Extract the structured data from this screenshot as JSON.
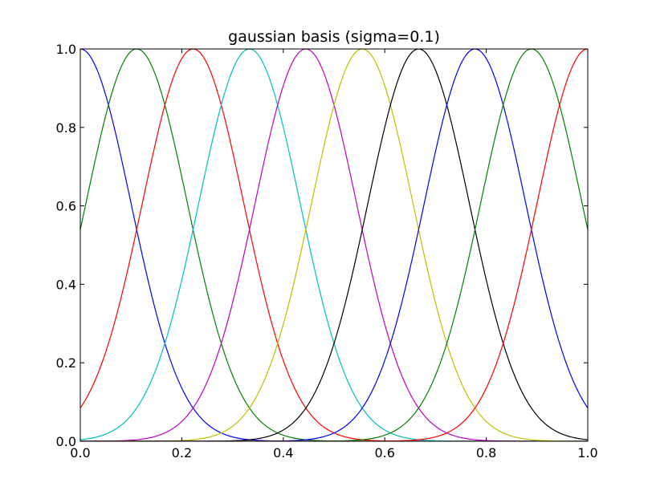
{
  "chart_data": {
    "type": "line",
    "title": "gaussian basis (sigma=0.1)",
    "xlabel": "",
    "ylabel": "",
    "xlim": [
      0.0,
      1.0
    ],
    "ylim": [
      0.0,
      1.0
    ],
    "grid": false,
    "legend": "none",
    "x_ticks": [
      "0.0",
      "0.2",
      "0.4",
      "0.6",
      "0.8",
      "1.0"
    ],
    "y_ticks": [
      "0.0",
      "0.2",
      "0.4",
      "0.6",
      "0.8",
      "1.0"
    ],
    "sigma": 0.1,
    "series": [
      {
        "center": 0.0,
        "color": "#0000ff"
      },
      {
        "center": 0.1111,
        "color": "#008000"
      },
      {
        "center": 0.2222,
        "color": "#ff0000"
      },
      {
        "center": 0.3333,
        "color": "#00bfbf"
      },
      {
        "center": 0.4444,
        "color": "#bf00bf"
      },
      {
        "center": 0.5556,
        "color": "#bfbf00"
      },
      {
        "center": 0.6667,
        "color": "#000000"
      },
      {
        "center": 0.7778,
        "color": "#0000ff"
      },
      {
        "center": 0.8889,
        "color": "#008000"
      },
      {
        "center": 1.0,
        "color": "#ff0000"
      }
    ]
  }
}
